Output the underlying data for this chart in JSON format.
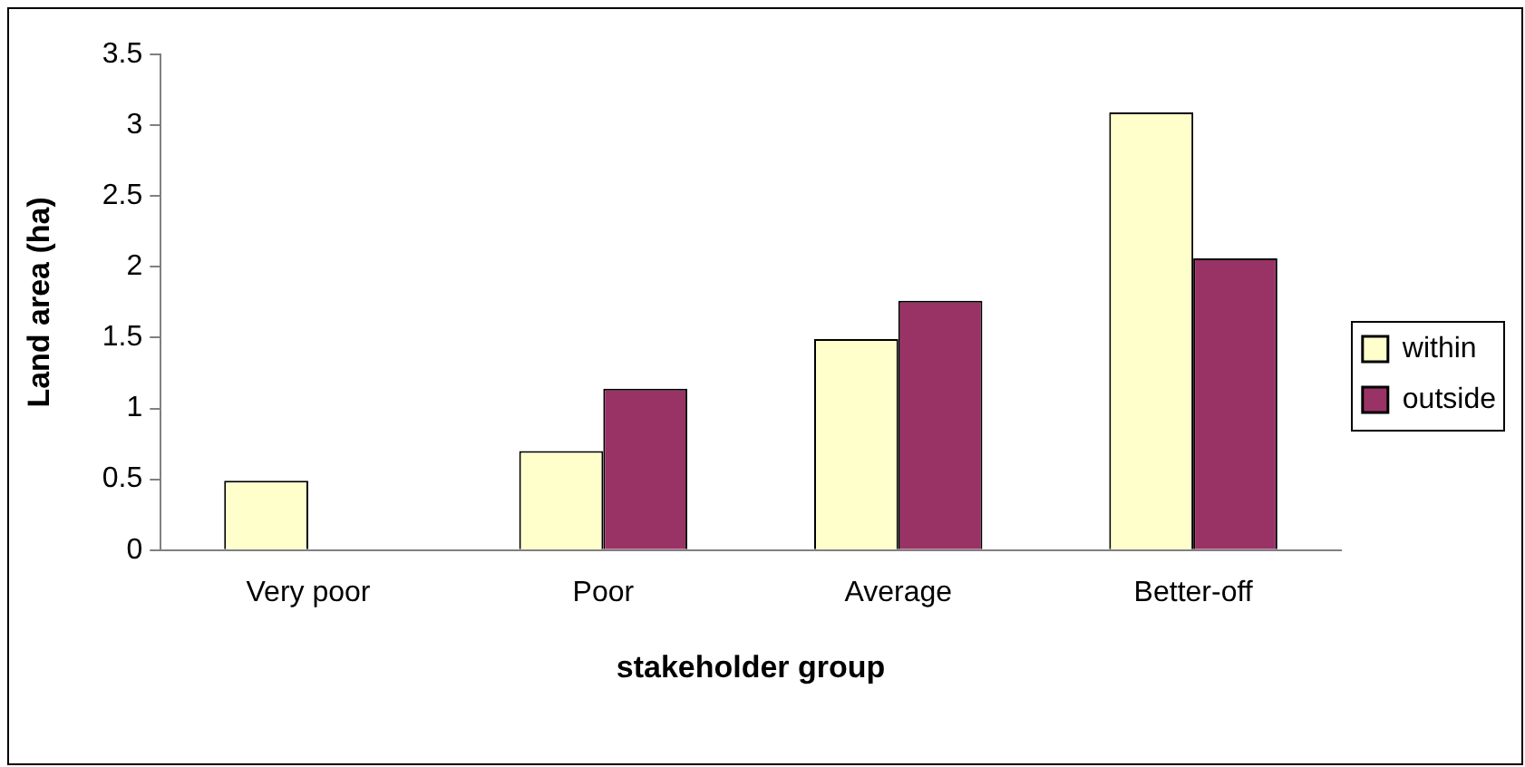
{
  "chart_data": {
    "type": "bar",
    "xlabel": "stakeholder group",
    "ylabel": "Land area (ha)",
    "categories": [
      "Very poor",
      "Poor",
      "Average",
      "Better-off"
    ],
    "series": [
      {
        "name": "within",
        "color": "#ffffcc",
        "values": [
          0.49,
          0.7,
          1.49,
          3.09
        ]
      },
      {
        "name": "outside",
        "color": "#993366",
        "values": [
          null,
          1.14,
          1.76,
          2.06
        ]
      }
    ],
    "ylim": [
      0,
      3.5
    ],
    "yticks": [
      0,
      0.5,
      1,
      1.5,
      2,
      2.5,
      3,
      3.5
    ],
    "grid": false,
    "legend": "right"
  }
}
